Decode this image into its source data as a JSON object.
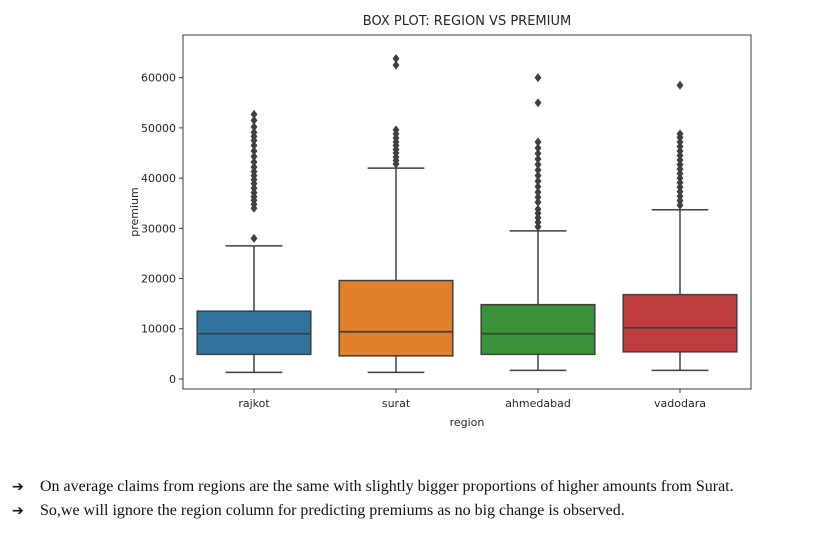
{
  "chart_data": {
    "type": "box",
    "title": "BOX PLOT: REGION VS PREMIUM",
    "xlabel": "region",
    "ylabel": "premium",
    "categories": [
      "rajkot",
      "surat",
      "ahmedabad",
      "vadodara"
    ],
    "ylim": [
      -2000,
      68500
    ],
    "yticks": [
      0,
      10000,
      20000,
      30000,
      40000,
      50000,
      60000
    ],
    "grid": false,
    "boxes": [
      {
        "category": "rajkot",
        "color": "#3274a1",
        "whisker_low": 1300,
        "q1": 4900,
        "median": 9000,
        "q3": 13500,
        "whisker_high": 26500,
        "outliers": [
          28000,
          34000,
          34800,
          35600,
          36300,
          37100,
          38000,
          38900,
          39700,
          40500,
          41300,
          42200,
          43200,
          44300,
          45400,
          46500,
          47500,
          48300,
          49100,
          50200,
          51500,
          52700
        ]
      },
      {
        "category": "surat",
        "color": "#e1812c",
        "whisker_low": 1300,
        "q1": 4600,
        "median": 9400,
        "q3": 19600,
        "whisker_high": 42000,
        "outliers": [
          42800,
          43500,
          44200,
          45000,
          45700,
          46500,
          47200,
          48000,
          48800,
          49600,
          62500,
          63800
        ]
      },
      {
        "category": "ahmedabad",
        "color": "#3a923a",
        "whisker_low": 1700,
        "q1": 4900,
        "median": 9000,
        "q3": 14800,
        "whisker_high": 29500,
        "outliers": [
          30300,
          31200,
          32100,
          33000,
          33800,
          35200,
          36200,
          37200,
          38300,
          39400,
          40500,
          41600,
          42700,
          43800,
          44900,
          46000,
          47200,
          55000,
          60000
        ]
      },
      {
        "category": "vadodara",
        "color": "#c03d3e",
        "whisker_low": 1700,
        "q1": 5400,
        "median": 10200,
        "q3": 16800,
        "whisker_high": 33700,
        "outliers": [
          34600,
          35500,
          36400,
          37300,
          38200,
          39100,
          40000,
          40900,
          41800,
          42700,
          43600,
          44500,
          45400,
          46300,
          47200,
          48100,
          48800,
          58500
        ]
      }
    ]
  },
  "notes": [
    "On average claims from regions are the same with slightly bigger proportions of higher amounts from Surat.",
    "So,we will ignore the region column for predicting premiums as no big change is observed."
  ],
  "bullet_icon": "right-arrow-icon",
  "bullet_glyph": "➔"
}
